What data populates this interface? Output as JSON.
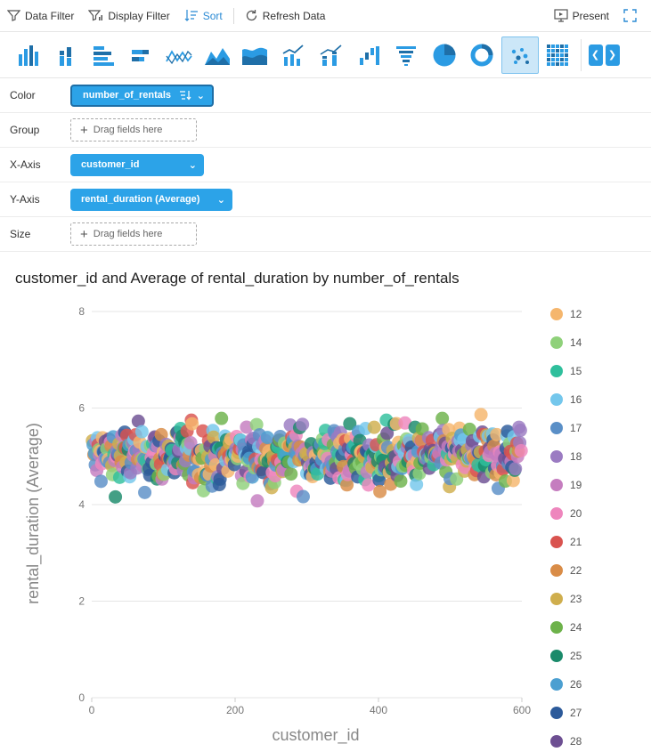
{
  "toolbar": {
    "data_filter": "Data Filter",
    "display_filter": "Display Filter",
    "sort": "Sort",
    "refresh": "Refresh Data",
    "present": "Present"
  },
  "chart_types": [
    "column-chart-icon",
    "stacked-column-chart-icon",
    "bar-chart-icon",
    "stacked-bar-chart-icon",
    "line-chart-icon",
    "area-chart-icon",
    "stacked-area-chart-icon",
    "combo-chart-icon",
    "stacked-combo-chart-icon",
    "waterfall-chart-icon",
    "funnel-chart-icon",
    "pie-chart-icon",
    "donut-chart-icon",
    "scatter-chart-icon",
    "heatmap-chart-icon"
  ],
  "active_chart_type": "scatter-chart-icon",
  "fields": {
    "color": {
      "label": "Color",
      "value": "number_of_rentals"
    },
    "group": {
      "label": "Group",
      "placeholder": "Drag fields here"
    },
    "xaxis": {
      "label": "X-Axis",
      "value": "customer_id"
    },
    "yaxis": {
      "label": "Y-Axis",
      "value": "rental_duration (Average)"
    },
    "size": {
      "label": "Size",
      "placeholder": "Drag fields here"
    }
  },
  "colors": {
    "accent": "#2ca3e8",
    "legend": [
      "#f5b66d",
      "#8fd17a",
      "#2fbf9c",
      "#74c7ec",
      "#5a8fc7",
      "#9b7bc2",
      "#c57dbf",
      "#ee86bd",
      "#d9534f",
      "#d98c47",
      "#cfae4d",
      "#6db24a",
      "#1a8a6a",
      "#4b9fd1",
      "#2c5a9a",
      "#6d4f92"
    ]
  },
  "chart_data": {
    "type": "scatter",
    "title": "customer_id and Average of rental_duration by number_of_rentals",
    "xlabel": "customer_id",
    "ylabel": "rental_duration (Average)",
    "xlim": [
      0,
      600
    ],
    "ylim": [
      0,
      8
    ],
    "xticks": [
      "0",
      "200",
      "400",
      "600"
    ],
    "yticks": [
      "0",
      "2",
      "4",
      "6",
      "8"
    ],
    "legend": [
      "12",
      "14",
      "15",
      "16",
      "17",
      "18",
      "19",
      "20",
      "21",
      "22",
      "23",
      "24",
      "25",
      "26",
      "27",
      "28"
    ],
    "legend_position": "right",
    "grid": true,
    "n_points": 599,
    "y_range_observed": [
      3.5,
      6.45
    ],
    "y_center": 5.0
  }
}
